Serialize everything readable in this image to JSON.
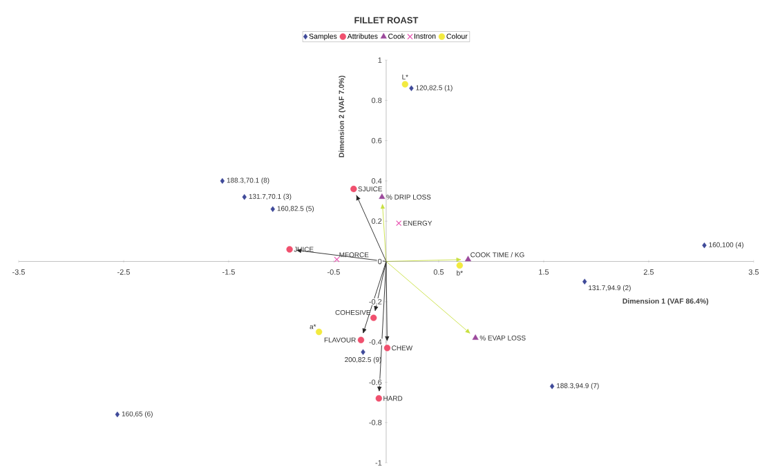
{
  "chart_data": {
    "type": "scatter",
    "title": "FILLET ROAST",
    "xlabel": "Dimension 1 (VAF 86.4%)",
    "ylabel": "Dimension 2 (VAF 7.0%)",
    "xlim": [
      -3.5,
      3.5
    ],
    "ylim": [
      -1,
      1
    ],
    "xticks": [
      -3.5,
      -2.5,
      -1.5,
      -0.5,
      0.5,
      1.5,
      2.5,
      3.5
    ],
    "yticks": [
      -1,
      -0.8,
      -0.6,
      -0.4,
      -0.2,
      0,
      0.2,
      0.4,
      0.6,
      0.8,
      1
    ],
    "grid": false,
    "legend": "top",
    "series": [
      {
        "name": "Samples",
        "color": "#3f4a99",
        "marker": "diamond",
        "x": [
          0.24,
          1.89,
          -1.35,
          3.03,
          -1.08,
          -2.56,
          1.58,
          -1.56,
          -0.22
        ],
        "values": [
          0.86,
          -0.1,
          0.32,
          0.08,
          0.26,
          -0.76,
          -0.62,
          0.4,
          -0.45
        ]
      },
      {
        "name": "Attributes",
        "color": "#f0506e",
        "marker": "circle",
        "x": [
          -0.31,
          -0.92,
          -0.12,
          -0.24,
          0.01,
          -0.07
        ],
        "values": [
          0.36,
          0.06,
          -0.28,
          -0.39,
          -0.43,
          -0.68
        ]
      },
      {
        "name": "Cook",
        "color": "#9c4a9c",
        "marker": "triangle",
        "x": [
          -0.04,
          0.78,
          0.85
        ],
        "values": [
          0.32,
          0.01,
          -0.38
        ]
      },
      {
        "name": "Instron",
        "color": "#e850b0",
        "marker": "cross",
        "x": [
          0.12,
          -0.47
        ],
        "values": [
          0.19,
          0.01
        ]
      },
      {
        "name": "Colour",
        "color": "#f2ea40",
        "marker": "circle",
        "x": [
          0.18,
          0.7,
          -0.64
        ],
        "values": [
          0.88,
          -0.02,
          -0.35
        ]
      }
    ],
    "annotations": [
      {
        "text": "120,82.5 (1)",
        "x": 0.24,
        "y": 0.86
      },
      {
        "text": "131.7,94.9 (2)",
        "x": 1.89,
        "y": -0.1
      },
      {
        "text": "131.7,70.1 (3)",
        "x": -1.35,
        "y": 0.32
      },
      {
        "text": "160,100 (4)",
        "x": 3.03,
        "y": 0.08
      },
      {
        "text": "160,82.5 (5)",
        "x": -1.08,
        "y": 0.26
      },
      {
        "text": "160,65 (6)",
        "x": -2.56,
        "y": -0.76
      },
      {
        "text": "188.3,94.9 (7)",
        "x": 1.58,
        "y": -0.62
      },
      {
        "text": "188.3,70.1 (8)",
        "x": -1.56,
        "y": 0.4
      },
      {
        "text": "200,82.5 (9)",
        "x": -0.22,
        "y": -0.45
      },
      {
        "text": "SJUICE",
        "x": -0.31,
        "y": 0.36
      },
      {
        "text": "JUICE",
        "x": -0.92,
        "y": 0.06
      },
      {
        "text": "COHESIVE",
        "x": -0.12,
        "y": -0.28
      },
      {
        "text": "FLAVOUR",
        "x": -0.24,
        "y": -0.39
      },
      {
        "text": "CHEW",
        "x": 0.01,
        "y": -0.43
      },
      {
        "text": "HARD",
        "x": -0.07,
        "y": -0.68
      },
      {
        "text": "% DRIP LOSS",
        "x": -0.04,
        "y": 0.32
      },
      {
        "text": "COOK TIME / KG",
        "x": 0.78,
        "y": 0.01
      },
      {
        "text": "% EVAP LOSS",
        "x": 0.85,
        "y": -0.38
      },
      {
        "text": "ENERGY",
        "x": 0.12,
        "y": 0.19
      },
      {
        "text": "MFORCE",
        "x": -0.47,
        "y": 0.01
      },
      {
        "text": "L*",
        "x": 0.18,
        "y": 0.88
      },
      {
        "text": "b*",
        "x": 0.7,
        "y": -0.02
      },
      {
        "text": "a*",
        "x": -0.64,
        "y": -0.35
      }
    ]
  }
}
